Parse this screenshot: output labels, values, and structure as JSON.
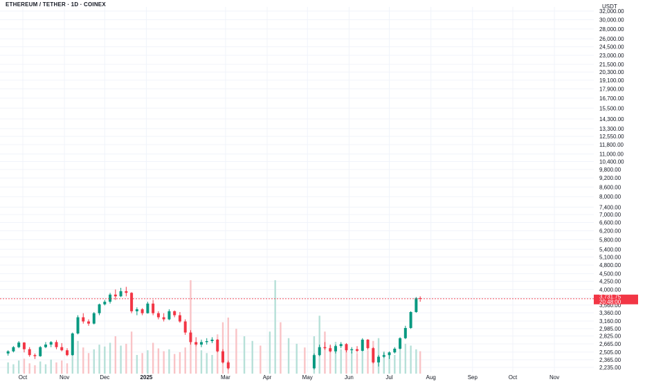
{
  "header": {
    "title": "ETHEREUM / TETHER · 1D · COINEX"
  },
  "colors": {
    "up": "#089981",
    "down": "#f23645",
    "up_volume": "#b6e0d8",
    "down_volume": "#f9c3c6",
    "grid": "#f0f3fa",
    "price_line": "#f23645",
    "background": "#ffffff",
    "axis_text": "#131722"
  },
  "chart_data": {
    "type": "candlestick",
    "title": "ETHEREUM / TETHER · 1D · COINEX",
    "y_unit": "USDT",
    "y_scale": "log",
    "y_ticks": [
      32000,
      30000,
      28000,
      26000,
      24500,
      23000,
      21500,
      20300,
      19100,
      17900,
      16700,
      15500,
      14300,
      13300,
      12550,
      11800,
      11000,
      10400,
      9800,
      9200,
      8600,
      8000,
      7400,
      7000,
      6600,
      6200,
      5800,
      5400,
      5100,
      4800,
      4500,
      4250,
      4000,
      3760,
      3560,
      3360,
      3160,
      2985,
      2825,
      2665,
      2505,
      2365,
      2235
    ],
    "y_tick_labels": [
      "32,000.00",
      "30,000.00",
      "28,000.00",
      "26,000.00",
      "24,500.00",
      "23,000.00",
      "21,500.00",
      "20,300.00",
      "19,100.00",
      "17,900.00",
      "16,700.00",
      "15,500.00",
      "14,300.00",
      "13,300.00",
      "12,550.00",
      "11,800.00",
      "11,000.00",
      "10,400.00",
      "9,800.00",
      "9,200.00",
      "8,600.00",
      "8,000.00",
      "7,400.00",
      "7,000.00",
      "6,600.00",
      "6,200.00",
      "5,800.00",
      "5,400.00",
      "5,100.00",
      "4,800.00",
      "4,500.00",
      "4,250.00",
      "4,000.00",
      "3,760.00",
      "3,560.00",
      "3,360.00",
      "3,160.00",
      "2,985.00",
      "2,825.00",
      "2,665.00",
      "2,505.00",
      "2,365.00",
      "2,235.00"
    ],
    "x_labels": [
      {
        "label": "Oct",
        "date": "2024-10-01",
        "bold": false
      },
      {
        "label": "Nov",
        "date": "2024-11-01",
        "bold": false
      },
      {
        "label": "Dec",
        "date": "2024-12-01",
        "bold": false
      },
      {
        "label": "2025",
        "date": "2025-01-01",
        "bold": true
      },
      {
        "label": "Mar",
        "date": "2025-03-01",
        "bold": false
      },
      {
        "label": "Apr",
        "date": "2025-04-01",
        "bold": false
      },
      {
        "label": "May",
        "date": "2025-05-01",
        "bold": false
      },
      {
        "label": "Jun",
        "date": "2025-06-01",
        "bold": false
      },
      {
        "label": "Jul",
        "date": "2025-07-01",
        "bold": false
      },
      {
        "label": "Aug",
        "date": "2025-08-01",
        "bold": false
      },
      {
        "label": "Sep",
        "date": "2025-09-01",
        "bold": false
      },
      {
        "label": "Oct",
        "date": "2025-10-01",
        "bold": false
      },
      {
        "label": "Nov",
        "date": "2025-11-01",
        "bold": false
      }
    ],
    "last_price": 3731.75,
    "last_price_label": "3,731.75",
    "countdown_label": "20:48:00",
    "grid": true,
    "volume_overlay": true,
    "candles": [
      {
        "date": "2024-09-20",
        "open": 2480,
        "high": 2540,
        "low": 2440,
        "close": 2520
      },
      {
        "date": "2024-09-24",
        "open": 2520,
        "high": 2620,
        "low": 2500,
        "close": 2600
      },
      {
        "date": "2024-09-28",
        "open": 2600,
        "high": 2720,
        "low": 2580,
        "close": 2690
      },
      {
        "date": "2024-10-02",
        "open": 2690,
        "high": 2700,
        "low": 2500,
        "close": 2560
      },
      {
        "date": "2024-10-06",
        "open": 2560,
        "high": 2600,
        "low": 2420,
        "close": 2450
      },
      {
        "date": "2024-10-10",
        "open": 2450,
        "high": 2480,
        "low": 2380,
        "close": 2430
      },
      {
        "date": "2024-10-14",
        "open": 2430,
        "high": 2620,
        "low": 2420,
        "close": 2600
      },
      {
        "date": "2024-10-18",
        "open": 2600,
        "high": 2700,
        "low": 2580,
        "close": 2650
      },
      {
        "date": "2024-10-22",
        "open": 2650,
        "high": 2720,
        "low": 2600,
        "close": 2700
      },
      {
        "date": "2024-10-26",
        "open": 2700,
        "high": 2740,
        "low": 2560,
        "close": 2600
      },
      {
        "date": "2024-10-30",
        "open": 2600,
        "high": 2680,
        "low": 2520,
        "close": 2540
      },
      {
        "date": "2024-11-03",
        "open": 2540,
        "high": 2580,
        "low": 2430,
        "close": 2450
      },
      {
        "date": "2024-11-07",
        "open": 2450,
        "high": 2900,
        "low": 2440,
        "close": 2880
      },
      {
        "date": "2024-11-11",
        "open": 2880,
        "high": 3300,
        "low": 2860,
        "close": 3250
      },
      {
        "date": "2024-11-15",
        "open": 3250,
        "high": 3350,
        "low": 3100,
        "close": 3150
      },
      {
        "date": "2024-11-19",
        "open": 3150,
        "high": 3200,
        "low": 3050,
        "close": 3100
      },
      {
        "date": "2024-11-23",
        "open": 3100,
        "high": 3380,
        "low": 3080,
        "close": 3350
      },
      {
        "date": "2024-11-27",
        "open": 3350,
        "high": 3600,
        "low": 3300,
        "close": 3580
      },
      {
        "date": "2024-12-01",
        "open": 3580,
        "high": 3700,
        "low": 3550,
        "close": 3650
      },
      {
        "date": "2024-12-05",
        "open": 3650,
        "high": 3900,
        "low": 3600,
        "close": 3850
      },
      {
        "date": "2024-12-09",
        "open": 3850,
        "high": 4000,
        "low": 3700,
        "close": 3800
      },
      {
        "date": "2024-12-13",
        "open": 3800,
        "high": 4050,
        "low": 3780,
        "close": 3950
      },
      {
        "date": "2024-12-17",
        "open": 3950,
        "high": 4080,
        "low": 3800,
        "close": 3900
      },
      {
        "date": "2024-12-21",
        "open": 3900,
        "high": 3920,
        "low": 3350,
        "close": 3400
      },
      {
        "date": "2024-12-25",
        "open": 3400,
        "high": 3500,
        "low": 3300,
        "close": 3450
      },
      {
        "date": "2024-12-29",
        "open": 3450,
        "high": 3480,
        "low": 3300,
        "close": 3350
      },
      {
        "date": "2025-01-02",
        "open": 3350,
        "high": 3650,
        "low": 3340,
        "close": 3600
      },
      {
        "date": "2025-01-06",
        "open": 3600,
        "high": 3700,
        "low": 3300,
        "close": 3350
      },
      {
        "date": "2025-01-10",
        "open": 3350,
        "high": 3400,
        "low": 3200,
        "close": 3250
      },
      {
        "date": "2025-01-14",
        "open": 3250,
        "high": 3350,
        "low": 3150,
        "close": 3200
      },
      {
        "date": "2025-01-18",
        "open": 3200,
        "high": 3450,
        "low": 3180,
        "close": 3400
      },
      {
        "date": "2025-01-22",
        "open": 3400,
        "high": 3420,
        "low": 3250,
        "close": 3300
      },
      {
        "date": "2025-01-26",
        "open": 3300,
        "high": 3380,
        "low": 3120,
        "close": 3150
      },
      {
        "date": "2025-01-30",
        "open": 3150,
        "high": 3200,
        "low": 2850,
        "close": 2900
      },
      {
        "date": "2025-02-03",
        "open": 2900,
        "high": 2950,
        "low": 2650,
        "close": 2700
      },
      {
        "date": "2025-02-07",
        "open": 2700,
        "high": 2800,
        "low": 2620,
        "close": 2650
      },
      {
        "date": "2025-02-11",
        "open": 2650,
        "high": 2750,
        "low": 2600,
        "close": 2700
      },
      {
        "date": "2025-02-15",
        "open": 2700,
        "high": 2780,
        "low": 2650,
        "close": 2720
      },
      {
        "date": "2025-02-19",
        "open": 2720,
        "high": 2800,
        "low": 2680,
        "close": 2750
      },
      {
        "date": "2025-02-23",
        "open": 2750,
        "high": 2760,
        "low": 2500,
        "close": 2520
      },
      {
        "date": "2025-02-27",
        "open": 2520,
        "high": 2560,
        "low": 2300,
        "close": 2320
      },
      {
        "date": "2025-03-03",
        "open": 2320,
        "high": 2350,
        "low": 2200,
        "close": 2220
      },
      {
        "date": "2025-05-06",
        "open": 2220,
        "high": 2480,
        "low": 2200,
        "close": 2450
      },
      {
        "date": "2025-05-10",
        "open": 2450,
        "high": 2650,
        "low": 2430,
        "close": 2600
      },
      {
        "date": "2025-05-14",
        "open": 2600,
        "high": 2700,
        "low": 2550,
        "close": 2580
      },
      {
        "date": "2025-05-18",
        "open": 2580,
        "high": 2650,
        "low": 2500,
        "close": 2520
      },
      {
        "date": "2025-05-22",
        "open": 2520,
        "high": 2650,
        "low": 2480,
        "close": 2620
      },
      {
        "date": "2025-05-26",
        "open": 2620,
        "high": 2700,
        "low": 2580,
        "close": 2660
      },
      {
        "date": "2025-05-30",
        "open": 2660,
        "high": 2680,
        "low": 2500,
        "close": 2540
      },
      {
        "date": "2025-06-03",
        "open": 2540,
        "high": 2600,
        "low": 2480,
        "close": 2560
      },
      {
        "date": "2025-06-07",
        "open": 2560,
        "high": 2620,
        "low": 2500,
        "close": 2530
      },
      {
        "date": "2025-06-11",
        "open": 2530,
        "high": 2780,
        "low": 2520,
        "close": 2750
      },
      {
        "date": "2025-06-15",
        "open": 2750,
        "high": 2760,
        "low": 2550,
        "close": 2580
      },
      {
        "date": "2025-06-19",
        "open": 2580,
        "high": 2600,
        "low": 2300,
        "close": 2320
      },
      {
        "date": "2025-06-23",
        "open": 2320,
        "high": 2450,
        "low": 2250,
        "close": 2420
      },
      {
        "date": "2025-06-27",
        "open": 2420,
        "high": 2500,
        "low": 2400,
        "close": 2450
      },
      {
        "date": "2025-07-01",
        "open": 2450,
        "high": 2520,
        "low": 2380,
        "close": 2500
      },
      {
        "date": "2025-07-05",
        "open": 2500,
        "high": 2600,
        "low": 2480,
        "close": 2570
      },
      {
        "date": "2025-07-09",
        "open": 2570,
        "high": 2800,
        "low": 2560,
        "close": 2780
      },
      {
        "date": "2025-07-13",
        "open": 2780,
        "high": 3050,
        "low": 2760,
        "close": 3000
      },
      {
        "date": "2025-07-17",
        "open": 3000,
        "high": 3400,
        "low": 2980,
        "close": 3380
      },
      {
        "date": "2025-07-21",
        "open": 3380,
        "high": 3780,
        "low": 3360,
        "close": 3750
      },
      {
        "date": "2025-07-24",
        "open": 3750,
        "high": 3800,
        "low": 3650,
        "close": 3731.75
      }
    ],
    "volumes": [
      {
        "date": "2024-09-20",
        "value": 0.12
      },
      {
        "date": "2024-09-24",
        "value": 0.1
      },
      {
        "date": "2024-09-28",
        "value": 0.14
      },
      {
        "date": "2024-10-02",
        "value": 0.16
      },
      {
        "date": "2024-10-06",
        "value": 0.11
      },
      {
        "date": "2024-10-10",
        "value": 0.09
      },
      {
        "date": "2024-10-14",
        "value": 0.13
      },
      {
        "date": "2024-10-18",
        "value": 0.1
      },
      {
        "date": "2024-10-22",
        "value": 0.15
      },
      {
        "date": "2024-10-26",
        "value": 0.12
      },
      {
        "date": "2024-10-30",
        "value": 0.14
      },
      {
        "date": "2024-11-03",
        "value": 0.11
      },
      {
        "date": "2024-11-07",
        "value": 0.3
      },
      {
        "date": "2024-11-11",
        "value": 0.35
      },
      {
        "date": "2024-11-15",
        "value": 0.28
      },
      {
        "date": "2024-11-19",
        "value": 0.22
      },
      {
        "date": "2024-11-23",
        "value": 0.26
      },
      {
        "date": "2024-11-27",
        "value": 0.31
      },
      {
        "date": "2024-12-01",
        "value": 0.29
      },
      {
        "date": "2024-12-05",
        "value": 0.33
      },
      {
        "date": "2024-12-09",
        "value": 0.4
      },
      {
        "date": "2024-12-13",
        "value": 0.3
      },
      {
        "date": "2024-12-17",
        "value": 0.32
      },
      {
        "date": "2024-12-21",
        "value": 0.45
      },
      {
        "date": "2024-12-25",
        "value": 0.2
      },
      {
        "date": "2024-12-29",
        "value": 0.22
      },
      {
        "date": "2025-01-02",
        "value": 0.25
      },
      {
        "date": "2025-01-06",
        "value": 0.33
      },
      {
        "date": "2025-01-10",
        "value": 0.27
      },
      {
        "date": "2025-01-14",
        "value": 0.24
      },
      {
        "date": "2025-01-18",
        "value": 0.26
      },
      {
        "date": "2025-01-22",
        "value": 0.21
      },
      {
        "date": "2025-01-26",
        "value": 0.23
      },
      {
        "date": "2025-01-30",
        "value": 0.28
      },
      {
        "date": "2025-02-03",
        "value": 1.0
      },
      {
        "date": "2025-02-07",
        "value": 0.3
      },
      {
        "date": "2025-02-11",
        "value": 0.25
      },
      {
        "date": "2025-02-15",
        "value": 0.22
      },
      {
        "date": "2025-02-19",
        "value": 0.2
      },
      {
        "date": "2025-02-23",
        "value": 0.42
      },
      {
        "date": "2025-02-27",
        "value": 0.55
      },
      {
        "date": "2025-03-03",
        "value": 0.6
      },
      {
        "date": "2025-03-09",
        "value": 0.48
      },
      {
        "date": "2025-03-15",
        "value": 0.4
      },
      {
        "date": "2025-03-21",
        "value": 0.35
      },
      {
        "date": "2025-03-27",
        "value": 0.3
      },
      {
        "date": "2025-04-03",
        "value": 0.45
      },
      {
        "date": "2025-04-07",
        "value": 1.0
      },
      {
        "date": "2025-04-11",
        "value": 0.55
      },
      {
        "date": "2025-04-17",
        "value": 0.38
      },
      {
        "date": "2025-04-23",
        "value": 0.32
      },
      {
        "date": "2025-04-29",
        "value": 0.28
      },
      {
        "date": "2025-05-06",
        "value": 0.4
      },
      {
        "date": "2025-05-10",
        "value": 0.62
      },
      {
        "date": "2025-05-14",
        "value": 0.45
      },
      {
        "date": "2025-05-18",
        "value": 0.3
      },
      {
        "date": "2025-05-22",
        "value": 0.34
      },
      {
        "date": "2025-05-26",
        "value": 0.26
      },
      {
        "date": "2025-05-30",
        "value": 0.28
      },
      {
        "date": "2025-06-03",
        "value": 0.24
      },
      {
        "date": "2025-06-07",
        "value": 0.22
      },
      {
        "date": "2025-06-11",
        "value": 0.3
      },
      {
        "date": "2025-06-15",
        "value": 0.25
      },
      {
        "date": "2025-06-19",
        "value": 0.35
      },
      {
        "date": "2025-06-23",
        "value": 0.38
      },
      {
        "date": "2025-06-27",
        "value": 0.24
      },
      {
        "date": "2025-07-01",
        "value": 0.22
      },
      {
        "date": "2025-07-05",
        "value": 0.2
      },
      {
        "date": "2025-07-09",
        "value": 0.28
      },
      {
        "date": "2025-07-13",
        "value": 0.32
      },
      {
        "date": "2025-07-17",
        "value": 0.3
      },
      {
        "date": "2025-07-21",
        "value": 0.26
      },
      {
        "date": "2025-07-24",
        "value": 0.24
      }
    ]
  }
}
